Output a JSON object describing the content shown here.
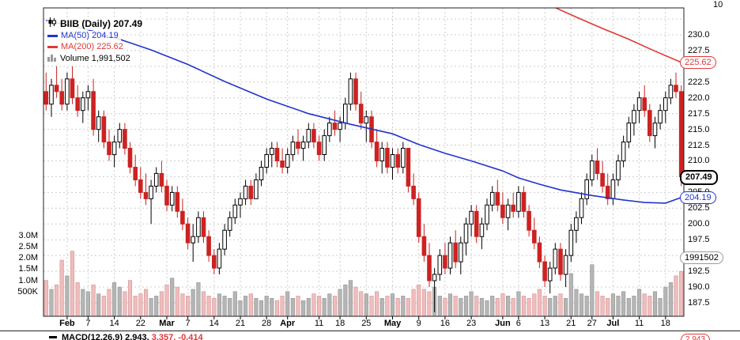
{
  "top_right_label": "10",
  "legend": {
    "symbol_line": "BIIB (Daily) 207.49",
    "ma50_label": "MA(50) 204.19",
    "ma200_label": "MA(200) 225.62",
    "volume_label": "Volume 1,991,502"
  },
  "badges": {
    "ma200": "225.62",
    "last": "207.49",
    "ma50": "204.19",
    "volume": "1991502"
  },
  "macd_row": {
    "label": "MACD(12,26,9)",
    "macd": "2.943,",
    "signal": "3.357,",
    "hist": "-0.414",
    "badge": "2.943"
  },
  "chart_data": {
    "type": "candlestick",
    "symbol": "BIIB",
    "timeframe": "Daily",
    "title": "BIIB (Daily) 207.49",
    "last_price": 207.49,
    "ma50_last": 204.19,
    "ma200_last": 225.62,
    "volume_last": 1991502,
    "legend_entries": [
      "BIIB (Daily) 207.49",
      "MA(50) 204.19",
      "MA(200) 225.62",
      "Volume 1,991,502"
    ],
    "macd": {
      "label": "MACD(12,26,9)",
      "macd": 2.943,
      "signal": 3.357,
      "histogram": -0.414
    },
    "y_axis": {
      "min": 185.36,
      "max": 234.26,
      "grid_step": 2.5,
      "grid": [
        232.5,
        230,
        227.5,
        225,
        222.5,
        220,
        217.5,
        215,
        212.5,
        210,
        207.5,
        205,
        202.5,
        200,
        197.5,
        195,
        192.5,
        190,
        187.5
      ],
      "labels": [
        230,
        227.5,
        225,
        222.5,
        220,
        217.5,
        215,
        212.5,
        210,
        207.5,
        205,
        202.5,
        200,
        197.5,
        195,
        192.5,
        190,
        187.5
      ]
    },
    "volume_axis": {
      "labels": [
        [
          "3.0M",
          3.0
        ],
        [
          "2.5M",
          2.5
        ],
        [
          "2.0M",
          2.0
        ],
        [
          "1.5M",
          1.5
        ],
        [
          "1.0M",
          1.0
        ],
        [
          "500K",
          0.5
        ]
      ]
    },
    "x_ticks": [
      {
        "i": 4,
        "label": "Feb",
        "bold": true
      },
      {
        "i": 8,
        "label": "7"
      },
      {
        "i": 13,
        "label": "14"
      },
      {
        "i": 18,
        "label": "22"
      },
      {
        "i": 23,
        "label": "Mar",
        "bold": true
      },
      {
        "i": 27,
        "label": "7"
      },
      {
        "i": 32,
        "label": "14"
      },
      {
        "i": 37,
        "label": "21"
      },
      {
        "i": 42,
        "label": "28"
      },
      {
        "i": 46,
        "label": "Apr",
        "bold": true
      },
      {
        "i": 52,
        "label": "11"
      },
      {
        "i": 56,
        "label": "18"
      },
      {
        "i": 61,
        "label": "25"
      },
      {
        "i": 66,
        "label": "May",
        "bold": true
      },
      {
        "i": 71,
        "label": "9"
      },
      {
        "i": 76,
        "label": "16"
      },
      {
        "i": 81,
        "label": "23"
      },
      {
        "i": 87,
        "label": "Jun",
        "bold": true
      },
      {
        "i": 90,
        "label": "6"
      },
      {
        "i": 95,
        "label": "13"
      },
      {
        "i": 100,
        "label": "21"
      },
      {
        "i": 104,
        "label": "27"
      },
      {
        "i": 108,
        "label": "Jul",
        "bold": true
      },
      {
        "i": 113,
        "label": "11"
      },
      {
        "i": 118,
        "label": "18"
      }
    ],
    "candles": [
      [
        221,
        224,
        218,
        219,
        1.6
      ],
      [
        219,
        223,
        217,
        222,
        1.2
      ],
      [
        222,
        225,
        220,
        221,
        1.4
      ],
      [
        221,
        223,
        218,
        219,
        2.5
      ],
      [
        219,
        224,
        218,
        223,
        1.8
      ],
      [
        223,
        225,
        219,
        220,
        2.9
      ],
      [
        220,
        222,
        217,
        218,
        1.5
      ],
      [
        218,
        221,
        216,
        220,
        1.2
      ],
      [
        220,
        222,
        218,
        221,
        1.1
      ],
      [
        221,
        223,
        214,
        215,
        1.4
      ],
      [
        215,
        218,
        213,
        217,
        1.0
      ],
      [
        217,
        218,
        212,
        213,
        0.9
      ],
      [
        213,
        215,
        210,
        211,
        1.2
      ],
      [
        211,
        214,
        209,
        213,
        1.5
      ],
      [
        213,
        216,
        212,
        215,
        1.3
      ],
      [
        215,
        216,
        211,
        212,
        1.1
      ],
      [
        212,
        213,
        208,
        209,
        1.6
      ],
      [
        209,
        211,
        206,
        207,
        0.9
      ],
      [
        207,
        209,
        204,
        205,
        1.0
      ],
      [
        205,
        208,
        203,
        204,
        1.2
      ],
      [
        204,
        207,
        200,
        206,
        0.8
      ],
      [
        206,
        209,
        205,
        208,
        0.9
      ],
      [
        208,
        210,
        205,
        206,
        1.1
      ],
      [
        206,
        207,
        202,
        203,
        1.4
      ],
      [
        203,
        206,
        202,
        205,
        1.7
      ],
      [
        205,
        206,
        201,
        202,
        1.3
      ],
      [
        202,
        204,
        199,
        200,
        1.0
      ],
      [
        200,
        201,
        196,
        197,
        0.9
      ],
      [
        197,
        200,
        194,
        198,
        1.2
      ],
      [
        198,
        202,
        197,
        201,
        1.5
      ],
      [
        201,
        202,
        197,
        198,
        1.1
      ],
      [
        198,
        199,
        194,
        195,
        0.9
      ],
      [
        195,
        196,
        192,
        193,
        0.8
      ],
      [
        193,
        197,
        192,
        196,
        1.0
      ],
      [
        196,
        200,
        195,
        199,
        0.9
      ],
      [
        199,
        202,
        198,
        201,
        0.8
      ],
      [
        201,
        204,
        200,
        203,
        1.1
      ],
      [
        203,
        205,
        201,
        204,
        0.7
      ],
      [
        204,
        207,
        203,
        206,
        0.9
      ],
      [
        206,
        207,
        203,
        204,
        1.0
      ],
      [
        204,
        208,
        204,
        207,
        0.8
      ],
      [
        207,
        210,
        206,
        209,
        0.7
      ],
      [
        209,
        212,
        208,
        211,
        0.9
      ],
      [
        211,
        213,
        209,
        212,
        0.8
      ],
      [
        212,
        213,
        209,
        210,
        0.7
      ],
      [
        210,
        212,
        208,
        209,
        0.9
      ],
      [
        209,
        212,
        208,
        211,
        1.1
      ],
      [
        211,
        214,
        210,
        213,
        0.8
      ],
      [
        213,
        215,
        211,
        212,
        0.9
      ],
      [
        212,
        214,
        210,
        213,
        0.7
      ],
      [
        213,
        216,
        212,
        215,
        0.8
      ],
      [
        215,
        216,
        212,
        213,
        1.0
      ],
      [
        213,
        214,
        210,
        211,
        0.9
      ],
      [
        211,
        215,
        210,
        214,
        0.8
      ],
      [
        214,
        217,
        213,
        216,
        1.0
      ],
      [
        216,
        218,
        214,
        215,
        0.9
      ],
      [
        215,
        217,
        213,
        216,
        1.2
      ],
      [
        216,
        220,
        215,
        219,
        1.4
      ],
      [
        219,
        224,
        218,
        223,
        1.6
      ],
      [
        223,
        224,
        218,
        219,
        1.3
      ],
      [
        219,
        221,
        215,
        216,
        1.1
      ],
      [
        216,
        218,
        213,
        217,
        1.0
      ],
      [
        217,
        218,
        212,
        213,
        0.9
      ],
      [
        213,
        215,
        209,
        210,
        1.1
      ],
      [
        210,
        213,
        208,
        212,
        0.8
      ],
      [
        212,
        213,
        208,
        209,
        0.9
      ],
      [
        209,
        212,
        207,
        211,
        1.0
      ],
      [
        211,
        212,
        208,
        209,
        0.8
      ],
      [
        209,
        213,
        208,
        212,
        0.9
      ],
      [
        212,
        212,
        205,
        206,
        0.8
      ],
      [
        206,
        208,
        203,
        204,
        1.2
      ],
      [
        204,
        205,
        197,
        198,
        1.4
      ],
      [
        198,
        200,
        194,
        195,
        1.2
      ],
      [
        195,
        197,
        190,
        191,
        1.1
      ],
      [
        191,
        193,
        186,
        192,
        1.3
      ],
      [
        192,
        196,
        191,
        195,
        0.9
      ],
      [
        195,
        197,
        192,
        193,
        0.8
      ],
      [
        193,
        198,
        192,
        197,
        1.0
      ],
      [
        197,
        199,
        193,
        194,
        0.9
      ],
      [
        194,
        198,
        192,
        197,
        0.8
      ],
      [
        197,
        201,
        195,
        200,
        0.9
      ],
      [
        200,
        203,
        198,
        202,
        1.1
      ],
      [
        202,
        203,
        197,
        198,
        0.9
      ],
      [
        198,
        201,
        196,
        200,
        0.8
      ],
      [
        200,
        204,
        199,
        203,
        0.7
      ],
      [
        203,
        206,
        202,
        205,
        0.9
      ],
      [
        205,
        207,
        202,
        203,
        0.8
      ],
      [
        203,
        205,
        200,
        201,
        1.0
      ],
      [
        201,
        204,
        199,
        203,
        0.9
      ],
      [
        203,
        205,
        201,
        202,
        0.8
      ],
      [
        202,
        206,
        201,
        205,
        1.1
      ],
      [
        205,
        206,
        201,
        202,
        0.9
      ],
      [
        202,
        203,
        198,
        199,
        0.8
      ],
      [
        199,
        201,
        196,
        197,
        1.0
      ],
      [
        197,
        198,
        193,
        194,
        1.2
      ],
      [
        194,
        195,
        190,
        191,
        0.9
      ],
      [
        191,
        194,
        189,
        193,
        0.8
      ],
      [
        193,
        197,
        192,
        196,
        0.9
      ],
      [
        196,
        197,
        191,
        192,
        1.0
      ],
      [
        192,
        196,
        190,
        195,
        0.8
      ],
      [
        195,
        200,
        194,
        199,
        1.9
      ],
      [
        199,
        202,
        197,
        201,
        1.2
      ],
      [
        201,
        205,
        200,
        204,
        1.0
      ],
      [
        204,
        208,
        203,
        207,
        0.9
      ],
      [
        207,
        211,
        206,
        210,
        2.3
      ],
      [
        210,
        212,
        207,
        208,
        1.1
      ],
      [
        208,
        210,
        205,
        206,
        0.9
      ],
      [
        206,
        208,
        203,
        204,
        0.8
      ],
      [
        204,
        208,
        203,
        207,
        1.0
      ],
      [
        207,
        211,
        206,
        210,
        0.9
      ],
      [
        210,
        214,
        209,
        213,
        1.1
      ],
      [
        213,
        217,
        212,
        216,
        0.8
      ],
      [
        216,
        219,
        214,
        218,
        0.9
      ],
      [
        218,
        221,
        216,
        220,
        1.2
      ],
      [
        220,
        222,
        217,
        218,
        1.0
      ],
      [
        218,
        219,
        213,
        214,
        0.9
      ],
      [
        214,
        217,
        212,
        216,
        1.1
      ],
      [
        216,
        219,
        215,
        218,
        0.8
      ],
      [
        218,
        221,
        216,
        220,
        1.3
      ],
      [
        220,
        223,
        219,
        222,
        1.5
      ],
      [
        222,
        224,
        220,
        221,
        1.8
      ],
      [
        221,
        222,
        206,
        207.49,
        2.0
      ]
    ],
    "ma50_points": [
      [
        0,
        232.3
      ],
      [
        8,
        230.8
      ],
      [
        14,
        229.3
      ],
      [
        20,
        227.6
      ],
      [
        27,
        225.3
      ],
      [
        34,
        222.6
      ],
      [
        42,
        219.8
      ],
      [
        50,
        217.5
      ],
      [
        58,
        215.8
      ],
      [
        66,
        214.3
      ],
      [
        71,
        212.6
      ],
      [
        76,
        211.2
      ],
      [
        81,
        210.0
      ],
      [
        87,
        208.4
      ],
      [
        90,
        207.3
      ],
      [
        94,
        206.3
      ],
      [
        98,
        205.4
      ],
      [
        104,
        204.5
      ],
      [
        110,
        203.8
      ],
      [
        114,
        203.4
      ],
      [
        118,
        203.3
      ],
      [
        121,
        204.19
      ]
    ],
    "ma200_points": [
      [
        92,
        236.8
      ],
      [
        97,
        234.3
      ],
      [
        101,
        232.8
      ],
      [
        106,
        231.0
      ],
      [
        111,
        229.3
      ],
      [
        116,
        227.4
      ],
      [
        121,
        225.62
      ]
    ],
    "colors": {
      "down": "#cc2222",
      "up_fill": "#ffffff",
      "up_stroke": "#000000",
      "ma50": "#2233cc",
      "ma200": "#e03838",
      "vol_up_fill": "#b5b5b5",
      "vol_up_stroke": "#8a8a8a",
      "vol_down_fill": "#f0bcbc",
      "vol_down_stroke": "#cc8888",
      "grid": "#cccccc",
      "border": "#222222"
    }
  }
}
